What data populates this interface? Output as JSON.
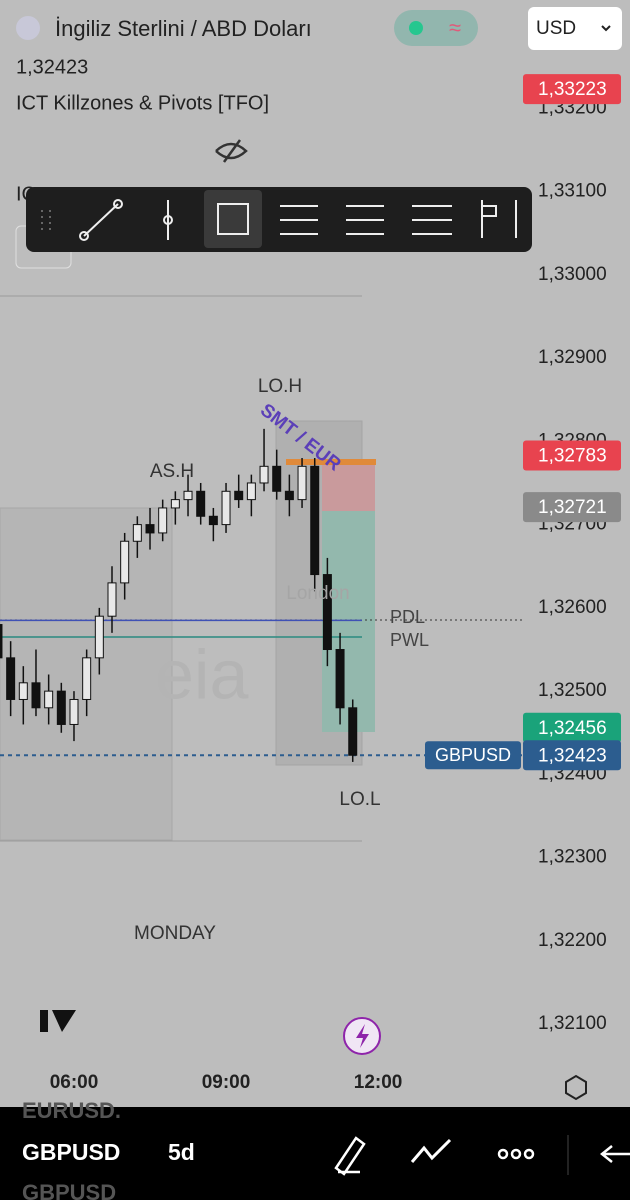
{
  "header": {
    "title": "İngiliz Sterlini / ABD Doları",
    "price": "1,32423",
    "indicator": "ICT Killzones & Pivots [TFO]",
    "hidden_label": "IC",
    "currency": "USD"
  },
  "chart_data": {
    "type": "candlestick",
    "x": [
      4.5,
      4.75,
      5,
      5.25,
      5.5,
      5.75,
      6,
      6.25,
      6.5,
      6.75,
      7,
      7.25,
      7.5,
      7.75,
      8,
      8.25,
      8.5,
      8.75,
      9,
      9.25,
      9.5,
      9.75,
      10,
      10.25,
      10.5,
      10.75,
      11,
      11.25,
      11.5
    ],
    "open": [
      1.3258,
      1.3254,
      1.3249,
      1.3251,
      1.3248,
      1.325,
      1.3246,
      1.3249,
      1.3254,
      1.3259,
      1.3263,
      1.3268,
      1.327,
      1.3269,
      1.3272,
      1.3273,
      1.3274,
      1.3271,
      1.327,
      1.3274,
      1.3273,
      1.3275,
      1.3277,
      1.3274,
      1.3273,
      1.3277,
      1.3264,
      1.3255,
      1.3248
    ],
    "high": [
      1.3259,
      1.3256,
      1.3253,
      1.3255,
      1.3252,
      1.3251,
      1.325,
      1.3255,
      1.326,
      1.3265,
      1.3269,
      1.3271,
      1.3272,
      1.3273,
      1.3274,
      1.3276,
      1.3275,
      1.3272,
      1.3275,
      1.3276,
      1.3276,
      1.32815,
      1.3279,
      1.3276,
      1.3278,
      1.3278,
      1.3266,
      1.3257,
      1.3249
    ],
    "low": [
      1.3252,
      1.3247,
      1.3246,
      1.3247,
      1.3246,
      1.3245,
      1.3244,
      1.3247,
      1.3252,
      1.3257,
      1.3261,
      1.3266,
      1.3267,
      1.3268,
      1.327,
      1.3271,
      1.327,
      1.3268,
      1.3269,
      1.3272,
      1.3271,
      1.3274,
      1.3273,
      1.3271,
      1.3272,
      1.3262,
      1.3253,
      1.3246,
      1.32415
    ],
    "close": [
      1.3254,
      1.3249,
      1.3251,
      1.3248,
      1.325,
      1.3246,
      1.3249,
      1.3254,
      1.3259,
      1.3263,
      1.3268,
      1.327,
      1.3269,
      1.3272,
      1.3273,
      1.3274,
      1.3271,
      1.327,
      1.3274,
      1.3273,
      1.3275,
      1.3277,
      1.3274,
      1.3273,
      1.3277,
      1.3264,
      1.3255,
      1.3248,
      1.32423
    ],
    "color": "#111111",
    "xlim": [
      4.54,
      14.84
    ],
    "xticks": [
      {
        "value": 6,
        "label": "06:00"
      },
      {
        "value": 9,
        "label": "09:00"
      },
      {
        "value": 12,
        "label": "12:00"
      }
    ],
    "ylim": [
      1.32009,
      1.3333
    ],
    "yticks": [
      {
        "value": 1.332,
        "label": "1,33200"
      },
      {
        "value": 1.331,
        "label": "1,33100"
      },
      {
        "value": 1.33,
        "label": "1,33000"
      },
      {
        "value": 1.329,
        "label": "1,32900"
      },
      {
        "value": 1.328,
        "label": "1,32800"
      },
      {
        "value": 1.327,
        "label": "1,32700"
      },
      {
        "value": 1.326,
        "label": "1,32600"
      },
      {
        "value": 1.325,
        "label": "1,32500"
      },
      {
        "value": 1.324,
        "label": "1,32400"
      },
      {
        "value": 1.323,
        "label": "1,32300"
      },
      {
        "value": 1.322,
        "label": "1,32200"
      },
      {
        "value": 1.321,
        "label": "1,32100"
      }
    ],
    "levels": [
      {
        "name": "PDL",
        "value": 1.32585,
        "color": "#3f51b5"
      },
      {
        "name": "PWL",
        "value": 1.32565,
        "color": "#2a8a80"
      }
    ],
    "price_badges": [
      {
        "value": 1.33223,
        "label": "1,33223",
        "color": "#e8434f"
      },
      {
        "value": 1.32783,
        "label": "1,32783",
        "color": "#e8434f"
      },
      {
        "value": 1.32721,
        "label": "1,32721",
        "color": "#8a8a8a"
      },
      {
        "value": 1.32456,
        "label": "1,32456",
        "color": "#1aa37a"
      },
      {
        "value": 1.32423,
        "label": "1,32423",
        "color": "#2c5d8f"
      }
    ],
    "symbol_badge": "GBPUSD",
    "annotations": [
      "LO.H",
      "SMT / EUR",
      "AS.H",
      "London",
      "LO.L",
      "MONDAY"
    ]
  },
  "bottom_bar": {
    "symbol": "GBPUSD",
    "interval": "5d",
    "ghost_above": "EURUSD.",
    "ghost_below": "GBPUSD"
  }
}
